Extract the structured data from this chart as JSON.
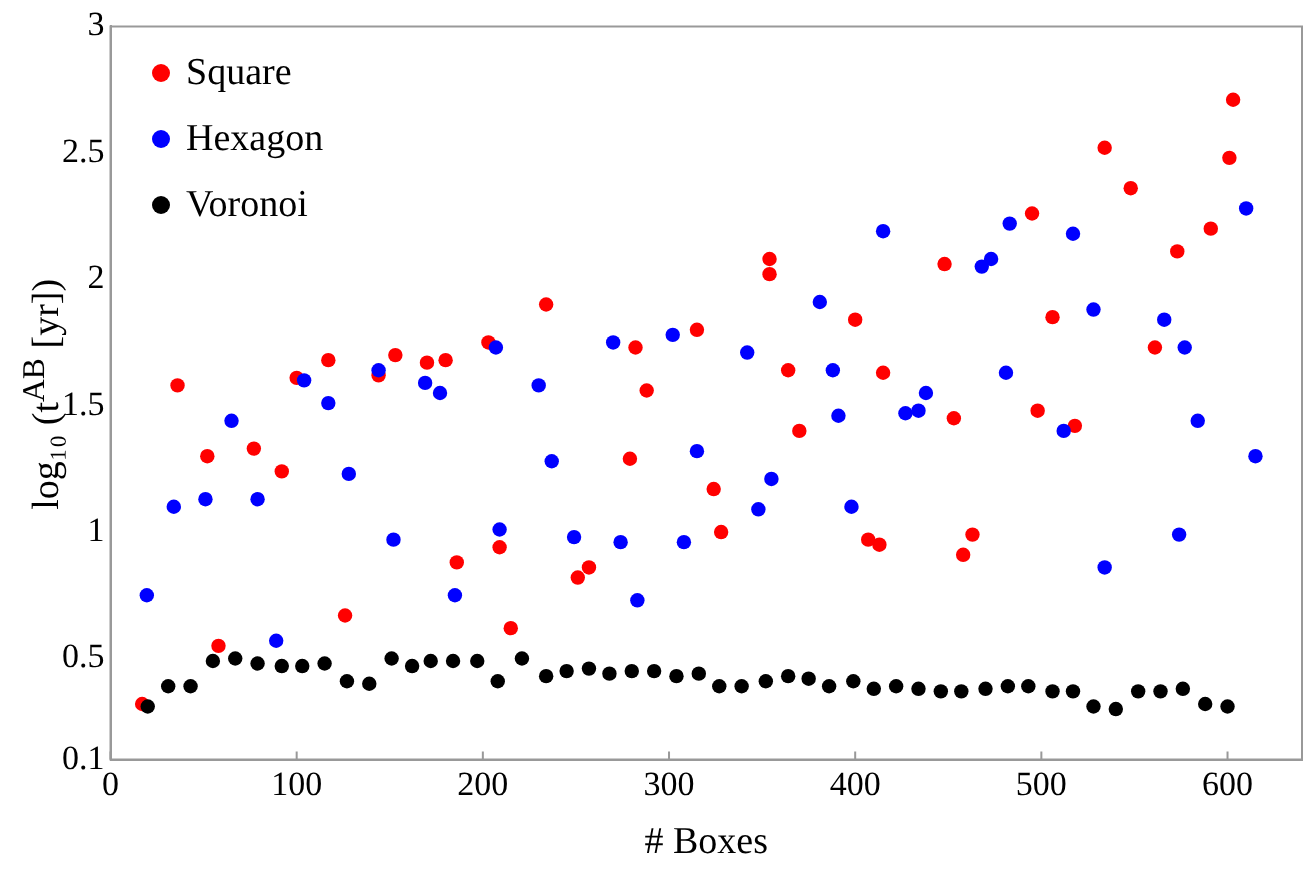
{
  "chart_data": {
    "type": "scatter",
    "xlabel": "# Boxes",
    "ylabel": "log₁₀ (t$^{AB}$ [yr])",
    "xlim": [
      0,
      640
    ],
    "xticks": [
      0,
      100,
      200,
      300,
      400,
      500,
      600
    ],
    "ylim": [
      0.1,
      3
    ],
    "yticks": [
      0.1,
      0.5,
      1,
      1.5,
      2,
      2.5,
      3
    ],
    "grid": false,
    "legend": "top left",
    "marker": "circle",
    "series": [
      {
        "name": "Square",
        "color": "#ff0000",
        "x": [
          17,
          36,
          52,
          58,
          77,
          92,
          100,
          117,
          126,
          144,
          153,
          170,
          180,
          186,
          203,
          209,
          215,
          234,
          251,
          257,
          279,
          282,
          288,
          315,
          324,
          328,
          354,
          354,
          364,
          370,
          400,
          407,
          413,
          415,
          448,
          453,
          458,
          463,
          495,
          498,
          506,
          518,
          534,
          548,
          561,
          573,
          591,
          601,
          603
        ],
        "values": [
          0.32,
          1.58,
          1.3,
          0.55,
          1.33,
          1.24,
          1.61,
          1.68,
          0.67,
          1.62,
          1.7,
          1.67,
          1.68,
          0.88,
          1.75,
          0.94,
          0.62,
          1.9,
          0.82,
          0.86,
          1.29,
          1.73,
          1.56,
          1.8,
          1.17,
          1.0,
          2.08,
          2.02,
          1.64,
          1.4,
          1.84,
          0.97,
          0.95,
          1.63,
          2.06,
          1.45,
          0.91,
          0.99,
          2.26,
          1.48,
          1.85,
          1.42,
          2.52,
          2.36,
          1.73,
          2.11,
          2.2,
          2.48,
          2.71
        ]
      },
      {
        "name": "Hexagon",
        "color": "#0000ff",
        "x": [
          19.5,
          34,
          51,
          65,
          79,
          89,
          104,
          117,
          128,
          144,
          152,
          169,
          177,
          185,
          207,
          209,
          230,
          237,
          249,
          270,
          274,
          283,
          302,
          308,
          315,
          342,
          348,
          355,
          381,
          388,
          391,
          398,
          415,
          427,
          434,
          438,
          468,
          473,
          481,
          483,
          512,
          517,
          528,
          534,
          566,
          574,
          577,
          584,
          610,
          615
        ],
        "values": [
          0.75,
          1.1,
          1.13,
          1.44,
          1.13,
          0.57,
          1.6,
          1.51,
          1.23,
          1.64,
          0.97,
          1.59,
          1.55,
          0.75,
          1.73,
          1.01,
          1.58,
          1.28,
          0.98,
          1.75,
          0.96,
          0.73,
          1.78,
          0.96,
          1.32,
          1.71,
          1.09,
          1.21,
          1.91,
          1.64,
          1.46,
          1.1,
          2.19,
          1.47,
          1.48,
          1.55,
          2.05,
          2.08,
          1.63,
          2.22,
          1.4,
          2.18,
          1.88,
          0.86,
          1.84,
          0.99,
          1.73,
          1.44,
          2.28,
          1.3
        ]
      },
      {
        "name": "Voronoi",
        "color": "#000000",
        "x": [
          20,
          31,
          43,
          55,
          67,
          79,
          92,
          103,
          115,
          127,
          139,
          151,
          162,
          172,
          184,
          197,
          208,
          221,
          234,
          245,
          257,
          268,
          280,
          292,
          304,
          316,
          327,
          339,
          352,
          364,
          375,
          386,
          399,
          410,
          422,
          434,
          446,
          457,
          470,
          482,
          493,
          506,
          517,
          528,
          540,
          552,
          564,
          576,
          588,
          600
        ],
        "values": [
          0.31,
          0.39,
          0.39,
          0.49,
          0.5,
          0.48,
          0.47,
          0.47,
          0.48,
          0.41,
          0.4,
          0.5,
          0.47,
          0.49,
          0.49,
          0.49,
          0.41,
          0.5,
          0.43,
          0.45,
          0.46,
          0.44,
          0.45,
          0.45,
          0.43,
          0.44,
          0.39,
          0.39,
          0.41,
          0.43,
          0.42,
          0.39,
          0.41,
          0.38,
          0.39,
          0.38,
          0.37,
          0.37,
          0.38,
          0.39,
          0.39,
          0.37,
          0.37,
          0.31,
          0.3,
          0.37,
          0.37,
          0.38,
          0.32,
          0.31
        ]
      }
    ]
  }
}
